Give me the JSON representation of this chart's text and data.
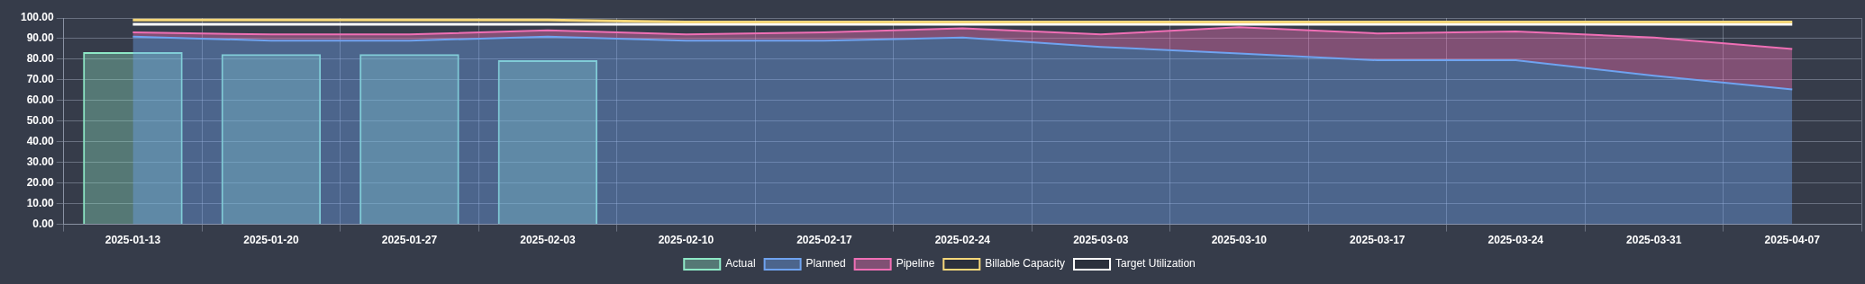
{
  "chart_data": {
    "type": "bar",
    "categories": [
      "2025-01-13",
      "2025-01-20",
      "2025-01-27",
      "2025-02-03",
      "2025-02-10",
      "2025-02-17",
      "2025-02-24",
      "2025-03-03",
      "2025-03-10",
      "2025-03-17",
      "2025-03-24",
      "2025-03-31",
      "2025-04-07"
    ],
    "series": [
      {
        "name": "Actual",
        "color": "#8ee8c6",
        "values": [
          83.5,
          82.5,
          82.5,
          79.5,
          null,
          null,
          null,
          null,
          null,
          null,
          null,
          null,
          null
        ]
      },
      {
        "name": "Planned",
        "type": "area",
        "color": "#6fa3f0",
        "values": [
          91,
          89,
          89,
          91,
          89,
          89,
          90.5,
          86,
          82.8,
          79.5,
          79.5,
          72,
          65.4
        ]
      },
      {
        "name": "Pipeline",
        "type": "area",
        "color": "#ef6fb5",
        "values": [
          93,
          92,
          92,
          94,
          92,
          93,
          95,
          92,
          95.5,
          92.5,
          93.5,
          90.5,
          85
        ]
      },
      {
        "name": "Billable Capacity",
        "type": "line",
        "color": "#f5d77a",
        "values": [
          99,
          99,
          99,
          99,
          98,
          98,
          98,
          98,
          98,
          98,
          98,
          98,
          98
        ]
      },
      {
        "name": "Target Utilization",
        "type": "line",
        "color": "#ffffff",
        "values": [
          97,
          97,
          97,
          97,
          97,
          97,
          97,
          97,
          97,
          97,
          97,
          97,
          97
        ]
      }
    ],
    "ylim": [
      0,
      100
    ],
    "yticks": [
      {
        "value": 0,
        "label": "0.00"
      },
      {
        "value": 10,
        "label": "10.00"
      },
      {
        "value": 20,
        "label": "20.00"
      },
      {
        "value": 30,
        "label": "30.00"
      },
      {
        "value": 40,
        "label": "40.00"
      },
      {
        "value": 50,
        "label": "50.00"
      },
      {
        "value": 60,
        "label": "60.00"
      },
      {
        "value": 70,
        "label": "70.00"
      },
      {
        "value": 80,
        "label": "80.00"
      },
      {
        "value": 90,
        "label": "90.00"
      },
      {
        "value": 100,
        "label": "100.00"
      }
    ],
    "grid": true,
    "legend": "bottom",
    "marker": "none"
  }
}
